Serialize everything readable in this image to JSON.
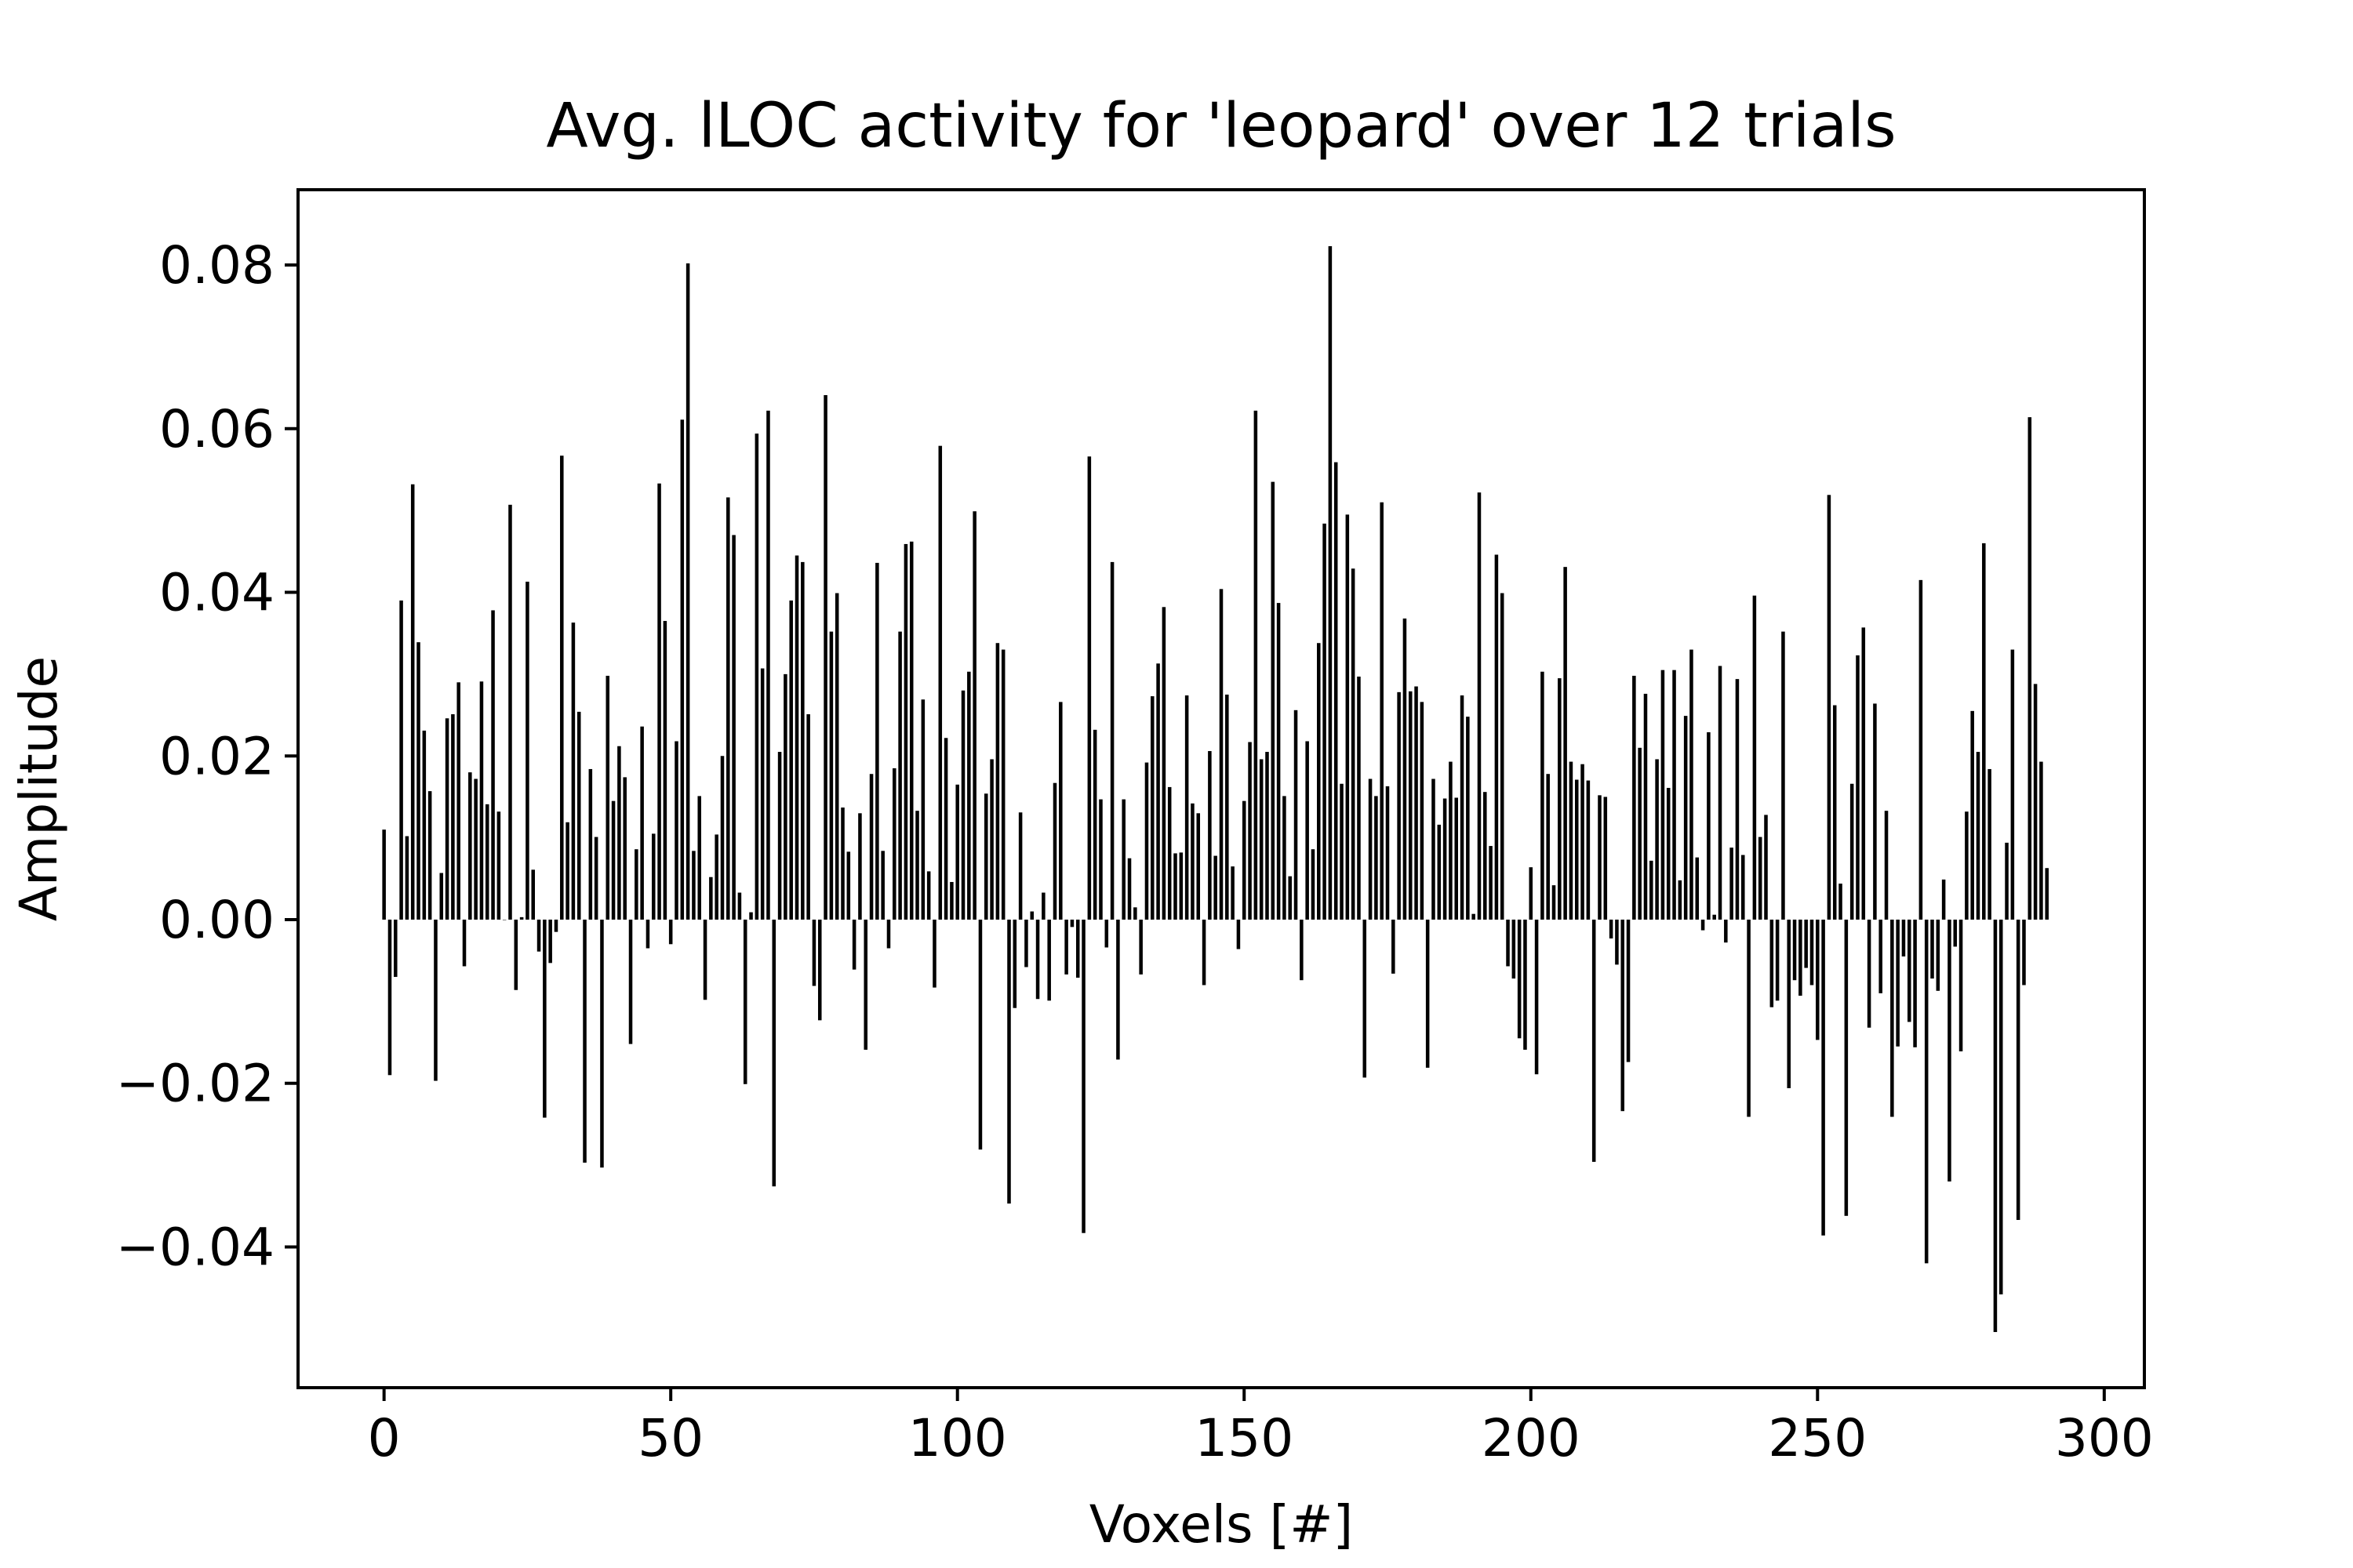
{
  "chart_data": {
    "type": "bar",
    "title": "Avg. lLOC activity for 'leopard' over 12 trials",
    "xlabel": "Voxels [#]",
    "ylabel": "Amplitude",
    "xlim": [
      -15,
      307
    ],
    "ylim": [
      -0.0572,
      0.0892
    ],
    "xticks": [
      0,
      50,
      100,
      150,
      200,
      250,
      300
    ],
    "xtick_labels": [
      "0",
      "50",
      "100",
      "150",
      "200",
      "250",
      "300"
    ],
    "yticks": [
      -0.04,
      -0.02,
      0.0,
      0.02,
      0.04,
      0.06,
      0.08
    ],
    "ytick_labels": [
      "−0.04",
      "−0.02",
      "0.00",
      "0.02",
      "0.04",
      "0.06",
      "0.08"
    ],
    "grid": false,
    "bar_color": "#000000",
    "x_start": 0,
    "values": [
      0.011,
      -0.019,
      -0.007,
      0.039,
      0.0102,
      0.0532,
      0.0339,
      0.0231,
      0.0157,
      -0.0197,
      0.0057,
      0.0246,
      0.0251,
      0.029,
      -0.0057,
      0.018,
      0.0172,
      0.0291,
      0.0141,
      0.0378,
      0.0132,
      0.0,
      0.0507,
      -0.0086,
      0.0003,
      0.0413,
      0.0061,
      -0.0039,
      -0.0242,
      -0.0053,
      -0.0015,
      0.0567,
      0.0119,
      0.0363,
      0.0254,
      -0.0297,
      0.0184,
      0.0101,
      -0.0303,
      0.0298,
      0.0145,
      0.0212,
      0.0174,
      -0.0152,
      0.0086,
      0.0236,
      -0.0035,
      0.0105,
      0.0533,
      0.0365,
      -0.003,
      0.0218,
      0.0611,
      0.0802,
      0.0084,
      0.0151,
      -0.0098,
      0.0052,
      0.0104,
      0.02,
      0.0516,
      0.047,
      0.0033,
      -0.0201,
      0.0009,
      0.0594,
      0.0307,
      0.0622,
      -0.0326,
      0.0205,
      0.03,
      0.039,
      0.0445,
      0.0437,
      0.0251,
      -0.0081,
      -0.0123,
      0.0641,
      0.0352,
      0.0399,
      0.0137,
      0.0083,
      -0.0061,
      0.013,
      -0.0159,
      0.0178,
      0.0436,
      0.0084,
      -0.0035,
      0.0185,
      0.0352,
      0.0459,
      0.0462,
      0.0133,
      0.0269,
      0.0059,
      -0.0083,
      0.0579,
      0.0222,
      0.0046,
      0.0165,
      0.028,
      0.0303,
      0.0499,
      -0.0281,
      0.0154,
      0.0196,
      0.0338,
      0.033,
      -0.0347,
      -0.0108,
      0.0131,
      -0.0058,
      0.001,
      -0.0097,
      0.0033,
      -0.0099,
      0.0167,
      0.0266,
      -0.0067,
      -0.0009,
      -0.0071,
      -0.0383,
      0.0566,
      0.0232,
      0.0147,
      -0.0034,
      0.0437,
      -0.0171,
      0.0147,
      0.0075,
      0.0015,
      -0.0067,
      0.0192,
      0.0273,
      0.0313,
      0.0382,
      0.0162,
      0.0081,
      0.0082,
      0.0274,
      0.0142,
      0.013,
      -0.008,
      0.0206,
      0.0078,
      0.0404,
      0.0275,
      0.0065,
      -0.0036,
      0.0145,
      0.0217,
      0.0622,
      0.0196,
      0.0205,
      0.0535,
      0.0387,
      0.0151,
      0.0053,
      0.0256,
      -0.0074,
      0.0218,
      0.0086,
      0.0338,
      0.0484,
      0.0823,
      0.0559,
      0.0166,
      0.0495,
      0.0429,
      0.0297,
      -0.0193,
      0.0172,
      0.0151,
      0.051,
      0.0163,
      -0.0066,
      0.0278,
      0.0368,
      0.0279,
      0.0285,
      0.0266,
      -0.0181,
      0.0172,
      0.0116,
      0.0148,
      0.0193,
      0.0149,
      0.0274,
      0.0248,
      0.0007,
      0.0522,
      0.0156,
      0.009,
      0.0446,
      0.0399,
      -0.0057,
      -0.0072,
      -0.0145,
      -0.0159,
      0.0064,
      -0.0189,
      0.0303,
      0.0178,
      0.0042,
      0.0295,
      0.0431,
      0.0193,
      0.0171,
      0.019,
      0.017,
      -0.0296,
      0.0152,
      0.015,
      -0.0023,
      -0.0055,
      -0.0234,
      -0.0174,
      0.0298,
      0.021,
      0.0276,
      0.0072,
      0.0196,
      0.0305,
      0.0161,
      0.0305,
      0.0048,
      0.0249,
      0.033,
      0.0076,
      -0.0013,
      0.0229,
      0.0006,
      0.031,
      -0.0028,
      0.0088,
      0.0294,
      0.0079,
      -0.0241,
      0.0396,
      0.0101,
      0.0128,
      -0.0107,
      -0.0099,
      0.0352,
      -0.0206,
      -0.0074,
      -0.0093,
      -0.0059,
      -0.008,
      -0.0147,
      -0.0386,
      0.0519,
      0.0262,
      0.0044,
      -0.0362,
      0.0166,
      0.0323,
      0.0357,
      -0.0132,
      0.0264,
      -0.009,
      0.0133,
      -0.0241,
      -0.0155,
      -0.0045,
      -0.0125,
      -0.0156,
      0.0415,
      -0.042,
      -0.0072,
      -0.0087,
      0.0049,
      -0.032,
      -0.0033,
      -0.0161,
      0.0132,
      0.0255,
      0.0205,
      0.046,
      0.0184,
      -0.0504,
      -0.0458,
      0.0094,
      0.033,
      -0.0367,
      -0.008,
      0.0614,
      0.0288,
      0.0193,
      0.0063
    ]
  }
}
